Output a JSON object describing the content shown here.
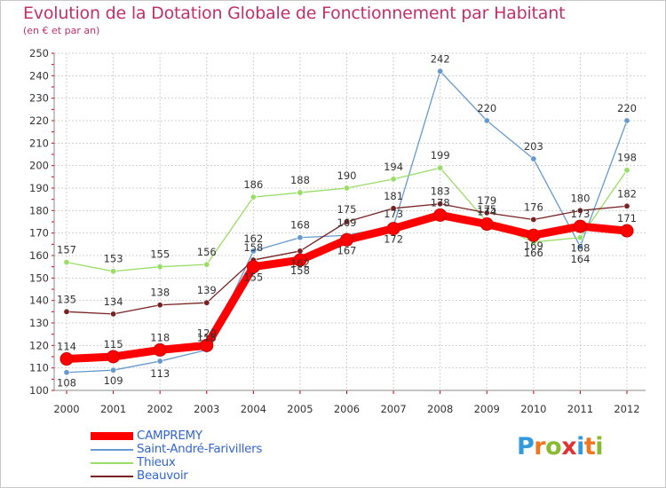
{
  "chart_data": {
    "type": "line",
    "title": "Evolution de la Dotation Globale de Fonctionnement par Habitant",
    "subtitle": "(en € et par an)",
    "categories": [
      "2000",
      "2001",
      "2002",
      "2003",
      "2004",
      "2005",
      "2006",
      "2007",
      "2008",
      "2009",
      "2010",
      "2011",
      "2012"
    ],
    "ylim": [
      100,
      250
    ],
    "yticks": [
      100,
      110,
      120,
      130,
      140,
      150,
      160,
      170,
      180,
      190,
      200,
      210,
      220,
      230,
      240,
      250
    ],
    "grid": true,
    "series": [
      {
        "name": "CAMPREMY",
        "color": "#ff0000",
        "values": [
          114,
          115,
          118,
          120,
          155,
          158,
          167,
          172,
          178,
          174,
          169,
          173,
          171
        ]
      },
      {
        "name": "Saint-André-Farivillers",
        "color": "#6699cc",
        "values": [
          108,
          109,
          113,
          118,
          162,
          168,
          169,
          173,
          242,
          220,
          203,
          164,
          220
        ]
      },
      {
        "name": "Thieux",
        "color": "#99dd66",
        "values": [
          157,
          153,
          155,
          156,
          186,
          188,
          190,
          194,
          199,
          175,
          166,
          168,
          198
        ]
      },
      {
        "name": "Beauvoir",
        "color": "#772222",
        "values": [
          135,
          134,
          138,
          139,
          158,
          162,
          175,
          181,
          183,
          179,
          176,
          180,
          182
        ]
      }
    ],
    "labels": {
      "CAMPREMY": [
        "114",
        "115",
        "118",
        "120",
        "155",
        "158",
        "167",
        "172",
        "178",
        "174",
        "169",
        "173",
        "171"
      ],
      "Saint-André-Farivillers": [
        "108",
        "109",
        "113",
        "118",
        "162",
        "168",
        "169",
        "173",
        "242",
        "220",
        "203",
        "164",
        "220"
      ],
      "Thieux": [
        "157",
        "153",
        "155",
        "156",
        "186",
        "188",
        "190",
        "194",
        "199",
        "175",
        "166",
        "168",
        "198"
      ],
      "Beauvoir": [
        "135",
        "134",
        "138",
        "139",
        "158",
        "162",
        "175",
        "181",
        "183",
        "179",
        "176",
        "180",
        "182"
      ]
    }
  },
  "legend": {
    "items": [
      {
        "label": "CAMPREMY",
        "color": "#ff0000"
      },
      {
        "label": "Saint-André-Farivillers",
        "color": "#6699cc"
      },
      {
        "label": "Thieux",
        "color": "#99dd66"
      },
      {
        "label": "Beauvoir",
        "color": "#772222"
      }
    ]
  },
  "logo": {
    "letters": [
      "P",
      "r",
      "o",
      "x",
      "i",
      "t",
      "i"
    ],
    "colors": [
      "#3399dd",
      "#ee7722",
      "#88bb33",
      "#dd3333",
      "#3399dd",
      "#ee7722",
      "#88bb33"
    ]
  }
}
